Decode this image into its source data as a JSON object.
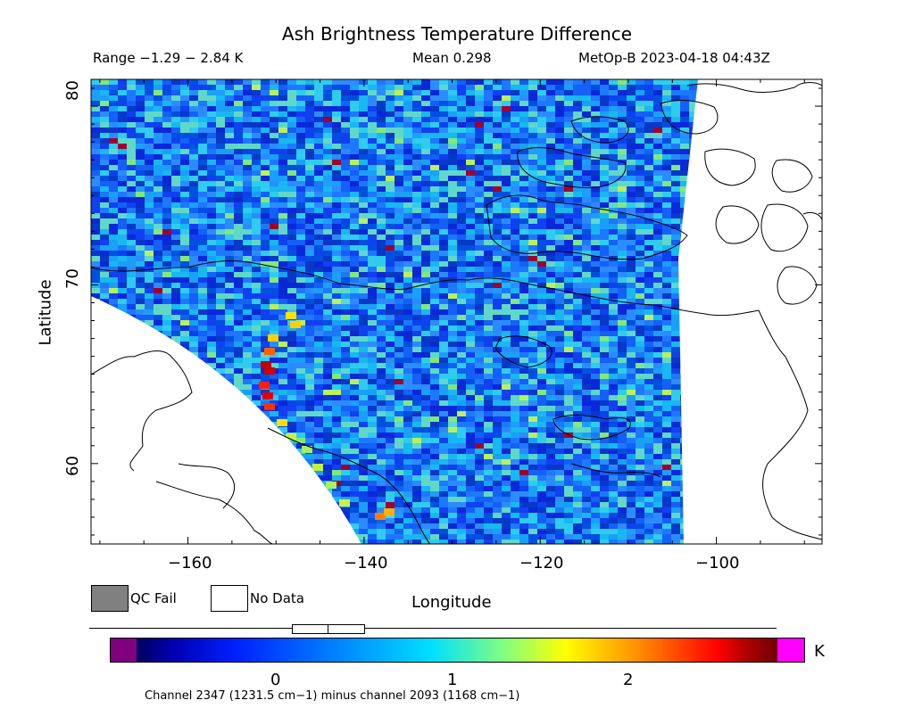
{
  "header": {
    "title": "Ash Brightness Temperature Difference",
    "range": "Range −1.29 − 2.84 K",
    "mean": "Mean 0.298",
    "satellite_time": "MetOp-B 2023-04-18 04:43Z"
  },
  "axes": {
    "xlabel": "Longitude",
    "ylabel": "Latitude",
    "xticks": [
      "−160",
      "−140",
      "−120",
      "−100"
    ],
    "yticks": [
      "80",
      "70",
      "60"
    ],
    "xrange": [
      -171,
      -88
    ],
    "yrange": [
      55.5,
      81.5
    ]
  },
  "legend": {
    "qc_fail": "QC Fail",
    "no_data": "No Data",
    "qc_fail_color": "#808080",
    "no_data_color": "#ffffff"
  },
  "colorbar": {
    "unit": "K",
    "ticks": [
      "0",
      "1",
      "2"
    ],
    "tick_values": [
      0,
      1,
      2
    ],
    "caption": "Channel 2347 (1231.5 cm−1) minus channel 2093 (1168 cm−1)"
  },
  "colors": {
    "mostly": "#1e6cf0",
    "hot": "#c00000"
  }
}
